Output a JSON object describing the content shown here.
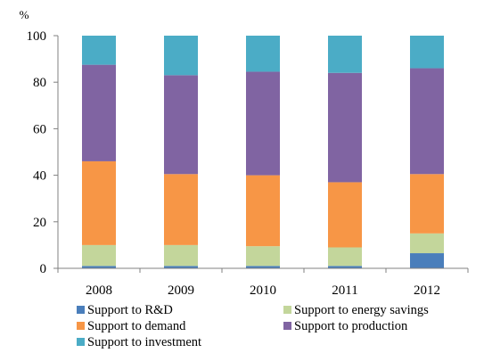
{
  "chart_data": {
    "type": "bar",
    "stacked": true,
    "title": "",
    "xlabel": "",
    "ylabel": "",
    "y_unit": "%",
    "ylim": [
      0,
      100
    ],
    "y_ticks": [
      0,
      20,
      40,
      60,
      80,
      100
    ],
    "grid": false,
    "legend_position": "bottom",
    "categories": [
      "2008",
      "2009",
      "2010",
      "2011",
      "2012"
    ],
    "series": [
      {
        "name": "Support to R&D",
        "color": "#4a7ebb",
        "values": [
          1.0,
          1.0,
          1.0,
          1.0,
          6.5
        ]
      },
      {
        "name": "Support to energy savings",
        "color": "#c3d69b",
        "values": [
          9.0,
          9.0,
          8.5,
          8.0,
          8.5
        ]
      },
      {
        "name": "Support to demand",
        "color": "#f79646",
        "values": [
          36.0,
          30.5,
          30.5,
          28.0,
          25.5
        ]
      },
      {
        "name": "Support to production",
        "color": "#8064a2",
        "values": [
          41.5,
          42.5,
          44.5,
          47.0,
          45.5
        ]
      },
      {
        "name": "Support to investment",
        "color": "#4bacc6",
        "values": [
          12.5,
          17.0,
          15.5,
          16.0,
          14.0
        ]
      }
    ]
  }
}
